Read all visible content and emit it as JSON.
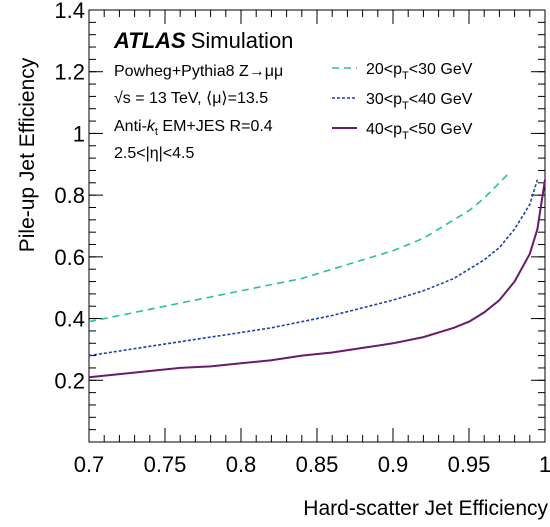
{
  "chart_data": {
    "type": "line",
    "xlabel": "Hard-scatter Jet Efficiency",
    "ylabel": "Pile-up Jet Efficiency",
    "xlim": [
      0.7,
      1.0
    ],
    "ylim": [
      0.0,
      1.4
    ],
    "x_ticks": [
      "0.7",
      "0.75",
      "0.8",
      "0.85",
      "0.9",
      "0.95",
      "1"
    ],
    "x_tick_values": [
      0.7,
      0.75,
      0.8,
      0.85,
      0.9,
      0.95,
      1.0
    ],
    "y_ticks": [
      "0.2",
      "0.4",
      "0.6",
      "0.8",
      "1",
      "1.2",
      "1.4"
    ],
    "y_tick_values": [
      0.2,
      0.4,
      0.6,
      0.8,
      1.0,
      1.2,
      1.4
    ],
    "grid": false,
    "legend_position": "top-right",
    "series": [
      {
        "name": "20<p_T<30 GeV",
        "label_parts": [
          "20<p",
          "T",
          "<30 GeV"
        ],
        "color": "#2bbf9c",
        "style": "dashed",
        "x": [
          0.7,
          0.72,
          0.74,
          0.76,
          0.78,
          0.8,
          0.82,
          0.84,
          0.86,
          0.88,
          0.9,
          0.92,
          0.94,
          0.95,
          0.96,
          0.97,
          0.976
        ],
        "y": [
          0.39,
          0.41,
          0.43,
          0.45,
          0.47,
          0.49,
          0.51,
          0.53,
          0.56,
          0.59,
          0.62,
          0.66,
          0.72,
          0.75,
          0.79,
          0.84,
          0.87
        ]
      },
      {
        "name": "30<p_T<40 GeV",
        "label_parts": [
          "30<p",
          "T",
          "<40 GeV"
        ],
        "color": "#1f3fa8",
        "style": "dotted",
        "x": [
          0.7,
          0.72,
          0.74,
          0.76,
          0.78,
          0.8,
          0.82,
          0.84,
          0.86,
          0.88,
          0.9,
          0.92,
          0.94,
          0.95,
          0.96,
          0.97,
          0.98,
          0.99,
          0.995
        ],
        "y": [
          0.28,
          0.295,
          0.31,
          0.325,
          0.34,
          0.355,
          0.37,
          0.39,
          0.41,
          0.435,
          0.46,
          0.49,
          0.53,
          0.56,
          0.59,
          0.63,
          0.69,
          0.77,
          0.85
        ]
      },
      {
        "name": "40<p_T<50 GeV",
        "label_parts": [
          "40<p",
          "T",
          "<50 GeV"
        ],
        "color": "#6b1a6b",
        "style": "solid",
        "x": [
          0.7,
          0.72,
          0.74,
          0.76,
          0.78,
          0.8,
          0.82,
          0.84,
          0.86,
          0.88,
          0.9,
          0.92,
          0.94,
          0.95,
          0.96,
          0.97,
          0.98,
          0.99,
          0.995,
          1.0
        ],
        "y": [
          0.21,
          0.22,
          0.23,
          0.24,
          0.245,
          0.255,
          0.265,
          0.28,
          0.29,
          0.305,
          0.32,
          0.34,
          0.37,
          0.39,
          0.42,
          0.46,
          0.52,
          0.61,
          0.69,
          0.85
        ]
      }
    ],
    "annotations": {
      "atlas_label": "ATLAS",
      "atlas_suffix": "Simulation",
      "line1": "Powheg+Pythia8 Z→μμ",
      "line2": "√s = 13 TeV, ⟨μ⟩=13.5",
      "line3_a": "Anti-",
      "line3_k": "k",
      "line3_t": "t",
      "line3_b": " EM+JES R=0.4",
      "line4": "2.5<|η|<4.5"
    }
  }
}
